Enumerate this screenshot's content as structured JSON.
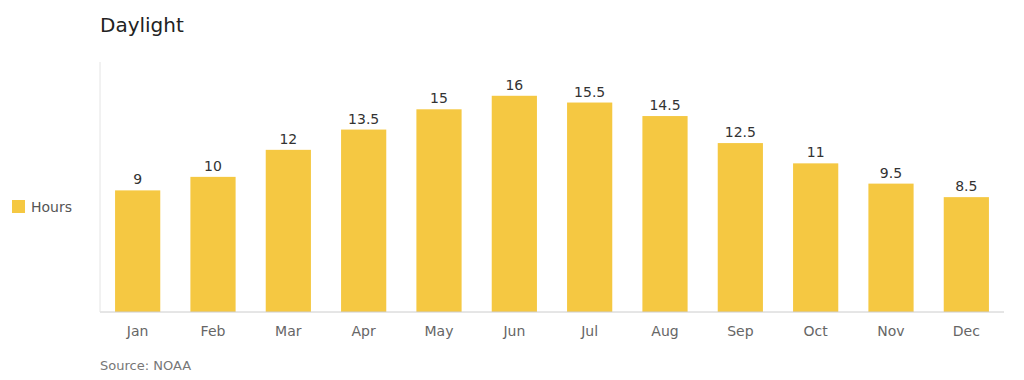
{
  "chart_data": {
    "type": "bar",
    "title": "Daylight",
    "categories": [
      "Jan",
      "Feb",
      "Mar",
      "Apr",
      "May",
      "Jun",
      "Jul",
      "Aug",
      "Sep",
      "Oct",
      "Nov",
      "Dec"
    ],
    "series": [
      {
        "name": "Hours",
        "color": "#F5C842",
        "values": [
          9,
          10,
          12,
          13.5,
          15,
          16,
          15.5,
          14.5,
          12.5,
          11,
          9.5,
          8.5
        ]
      }
    ],
    "ylim": [
      0,
      18.5
    ],
    "data_labels": true,
    "tick_labels": "x",
    "legend": "left",
    "annotations": [
      "Source: NOAA"
    ]
  }
}
